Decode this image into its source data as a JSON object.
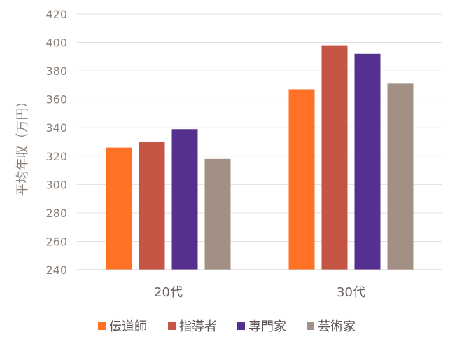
{
  "chart_data": {
    "type": "bar",
    "categories": [
      "20代",
      "30代"
    ],
    "series": [
      {
        "name": "伝道師",
        "color": "#FF7125",
        "values": [
          326,
          367
        ]
      },
      {
        "name": "指導者",
        "color": "#C65545",
        "values": [
          330,
          398
        ]
      },
      {
        "name": "専門家",
        "color": "#56308E",
        "values": [
          339,
          392
        ]
      },
      {
        "name": "芸術家",
        "color": "#A39085",
        "values": [
          318,
          371
        ]
      }
    ],
    "ylabel": "平均年収（万円）",
    "ylim": [
      240,
      420
    ],
    "yticks": [
      240,
      260,
      280,
      300,
      320,
      340,
      360,
      380,
      400,
      420
    ],
    "grid": true,
    "legend": "bottom"
  }
}
